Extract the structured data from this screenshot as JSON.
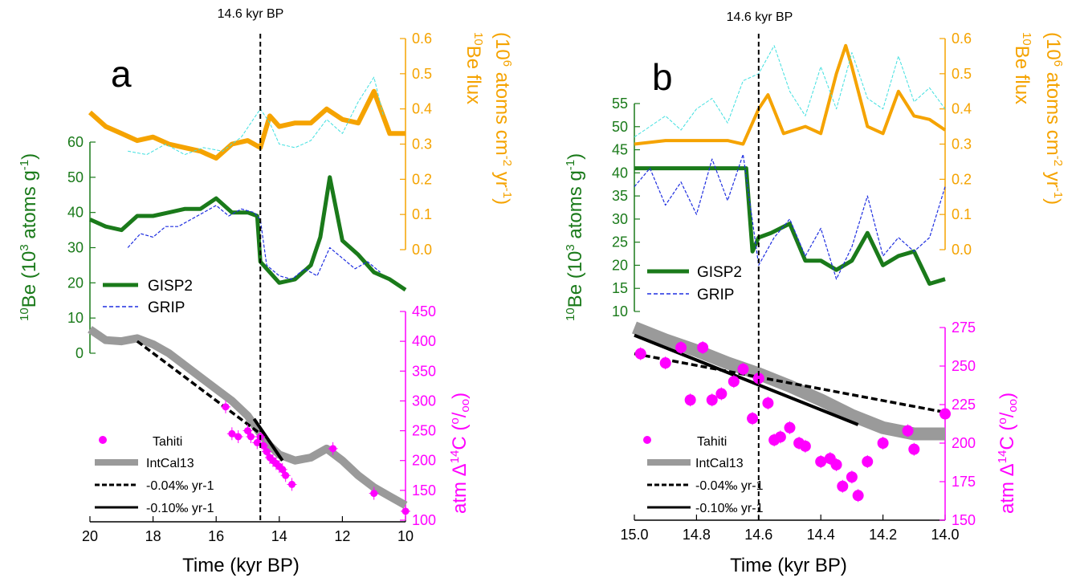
{
  "chart_data": [
    {
      "panel": "a",
      "type": "line",
      "event_label": "14.6 kyr BP",
      "event_x": 14.6,
      "xlabel": "Time (kyr BP)",
      "xlim": [
        20,
        10
      ],
      "xticks": [
        20,
        18,
        16,
        14,
        12,
        10
      ],
      "be_axis": {
        "label": "10Be (10^3 atoms g^-1)",
        "ylim": [
          0,
          60
        ],
        "ticks": [
          0,
          10,
          20,
          30,
          40,
          50,
          60
        ],
        "color": "#1a7a1a"
      },
      "flux_axis": {
        "label": "10Be flux (10^6 atoms cm^-2 yr^-1)",
        "ylim": [
          0,
          0.6
        ],
        "ticks": [
          "0.0",
          "0.1",
          "0.2",
          "0.3",
          "0.4",
          "0.5",
          "0.6"
        ],
        "color": "#f5a300"
      },
      "c14_axis": {
        "label": "atm Δ14C (‰)",
        "ylim": [
          100,
          450
        ],
        "ticks": [
          100,
          150,
          200,
          250,
          300,
          350,
          400,
          450
        ],
        "color": "#ff00ff"
      },
      "series": [
        {
          "name": "GISP2",
          "axis": "be",
          "color": "#1a7a1a",
          "x": [
            20.0,
            19.5,
            19.0,
            18.5,
            18.0,
            17.5,
            17.0,
            16.5,
            16.0,
            15.5,
            15.0,
            14.7,
            14.6,
            14.3,
            14.0,
            13.5,
            13.0,
            12.7,
            12.4,
            12.0,
            11.5,
            11.0,
            10.5,
            10.0
          ],
          "values": [
            38,
            36,
            35,
            39,
            39,
            40,
            41,
            41,
            44,
            40,
            40,
            39,
            26,
            23,
            20,
            21,
            25,
            33,
            50,
            32,
            28,
            23,
            21,
            18
          ]
        },
        {
          "name": "GRIP",
          "axis": "be",
          "color": "#1e2ee0",
          "x": [
            18.8,
            18.4,
            18.0,
            17.6,
            17.2,
            16.8,
            16.4,
            16.0,
            15.6,
            15.2,
            14.8,
            14.6,
            14.4,
            14.0,
            13.6,
            13.2,
            12.8,
            12.4,
            12.0,
            11.6,
            11.2,
            10.8
          ],
          "values": [
            30,
            34,
            33,
            36,
            36,
            38,
            40,
            42,
            39,
            41,
            40,
            38,
            25,
            22,
            21,
            24,
            22,
            30,
            27,
            24,
            26,
            23
          ]
        },
        {
          "name": "10Be flux (GISP2)",
          "axis": "flux",
          "color": "#f5a300",
          "x": [
            20.0,
            19.5,
            19.0,
            18.5,
            18.0,
            17.5,
            17.0,
            16.5,
            16.0,
            15.5,
            15.0,
            14.6,
            14.3,
            14.0,
            13.5,
            13.0,
            12.5,
            12.0,
            11.5,
            11.0,
            10.5,
            10.0
          ],
          "values": [
            0.39,
            0.35,
            0.33,
            0.31,
            0.32,
            0.3,
            0.29,
            0.28,
            0.26,
            0.3,
            0.31,
            0.29,
            0.38,
            0.35,
            0.36,
            0.36,
            0.4,
            0.37,
            0.36,
            0.45,
            0.33,
            0.33
          ]
        },
        {
          "name": "10Be flux (GRIP)",
          "axis": "flux",
          "color": "#40e0e0",
          "x": [
            18.8,
            18.2,
            17.6,
            17.0,
            16.4,
            15.8,
            15.2,
            14.6,
            14.3,
            14.0,
            13.5,
            13.0,
            12.5,
            12.0,
            11.5,
            11.0,
            10.7
          ],
          "values": [
            0.28,
            0.27,
            0.3,
            0.27,
            0.29,
            0.28,
            0.32,
            0.4,
            0.36,
            0.3,
            0.29,
            0.31,
            0.37,
            0.33,
            0.42,
            0.49,
            0.38
          ]
        },
        {
          "name": "IntCal13",
          "axis": "c14",
          "color": "#9a9a9a",
          "x": [
            20.0,
            19.5,
            19.0,
            18.5,
            18.0,
            17.5,
            17.0,
            16.5,
            16.0,
            15.5,
            15.0,
            14.6,
            14.3,
            14.0,
            13.5,
            13.0,
            12.5,
            12.0,
            11.5,
            11.0,
            10.5,
            10.0
          ],
          "values": [
            420,
            402,
            400,
            405,
            395,
            380,
            360,
            340,
            320,
            300,
            275,
            245,
            225,
            210,
            200,
            205,
            220,
            200,
            175,
            155,
            140,
            125
          ]
        },
        {
          "name": "-0.04‰ yr-1",
          "axis": "c14",
          "color": "#000000",
          "dashed": true,
          "x": [
            18.5,
            14.6
          ],
          "values": [
            400,
            245
          ]
        },
        {
          "name": "-0.10‰ yr-1",
          "axis": "c14",
          "color": "#000000",
          "x": [
            14.8,
            13.9
          ],
          "values": [
            270,
            200
          ]
        },
        {
          "name": "Tahiti",
          "axis": "c14",
          "color": "#ff00ff",
          "scatter": true,
          "x": [
            15.7,
            15.5,
            15.3,
            15.0,
            14.9,
            14.7,
            14.6,
            14.5,
            14.4,
            14.3,
            14.2,
            14.1,
            14.0,
            13.9,
            13.8,
            13.6,
            12.3,
            11.0,
            10.0
          ],
          "values": [
            290,
            245,
            240,
            250,
            240,
            230,
            240,
            225,
            215,
            205,
            200,
            195,
            190,
            185,
            175,
            160,
            220,
            145,
            115
          ]
        }
      ]
    },
    {
      "panel": "b",
      "type": "line",
      "event_label": "14.6 kyr BP",
      "event_x": 14.6,
      "xlabel": "Time (kyr BP)",
      "xlim": [
        15.0,
        14.0
      ],
      "xticks": [
        "15.0",
        "14.8",
        "14.6",
        "14.4",
        "14.2",
        "14.0"
      ],
      "be_axis": {
        "label": "10Be (10^3 atoms g^-1)",
        "ylim": [
          10,
          55
        ],
        "ticks": [
          10,
          15,
          20,
          25,
          30,
          35,
          40,
          45,
          50,
          55
        ],
        "color": "#1a7a1a"
      },
      "flux_axis": {
        "label": "10Be flux (10^6 atoms cm^-2 yr^-1)",
        "ylim": [
          0,
          0.6
        ],
        "ticks": [
          "0.0",
          "0.1",
          "0.2",
          "0.3",
          "0.4",
          "0.5",
          "0.6"
        ],
        "color": "#f5a300"
      },
      "c14_axis": {
        "label": "atm Δ14C (‰)",
        "ylim": [
          150,
          275
        ],
        "ticks": [
          150,
          175,
          200,
          225,
          250,
          275
        ],
        "color": "#ff00ff"
      },
      "series": [
        {
          "name": "GISP2",
          "axis": "be",
          "color": "#1a7a1a",
          "x": [
            15.0,
            14.85,
            14.7,
            14.64,
            14.62,
            14.6,
            14.56,
            14.5,
            14.45,
            14.4,
            14.35,
            14.3,
            14.25,
            14.2,
            14.15,
            14.1,
            14.05,
            14.0
          ],
          "values": [
            41,
            41,
            41,
            41,
            23,
            26,
            27,
            29,
            21,
            21,
            19,
            21,
            27,
            20,
            22,
            23,
            16,
            17
          ]
        },
        {
          "name": "GRIP",
          "axis": "be",
          "color": "#1e2ee0",
          "x": [
            15.0,
            14.95,
            14.9,
            14.85,
            14.8,
            14.75,
            14.7,
            14.65,
            14.6,
            14.55,
            14.5,
            14.45,
            14.4,
            14.35,
            14.3,
            14.25,
            14.2,
            14.15,
            14.1,
            14.05,
            14.0
          ],
          "values": [
            37,
            41,
            33,
            38,
            31,
            43,
            34,
            44,
            20,
            26,
            30,
            22,
            28,
            17,
            24,
            35,
            22,
            26,
            23,
            26,
            37
          ]
        },
        {
          "name": "10Be flux (GISP2)",
          "axis": "flux",
          "color": "#f5a300",
          "x": [
            15.0,
            14.9,
            14.8,
            14.7,
            14.65,
            14.6,
            14.57,
            14.52,
            14.45,
            14.4,
            14.35,
            14.32,
            14.3,
            14.25,
            14.2,
            14.15,
            14.1,
            14.05,
            14.0
          ],
          "values": [
            0.3,
            0.31,
            0.31,
            0.31,
            0.3,
            0.4,
            0.44,
            0.33,
            0.35,
            0.33,
            0.5,
            0.58,
            0.52,
            0.35,
            0.33,
            0.45,
            0.38,
            0.37,
            0.34
          ]
        },
        {
          "name": "10Be flux (GRIP)",
          "axis": "flux",
          "color": "#40e0e0",
          "x": [
            15.0,
            14.95,
            14.9,
            14.85,
            14.8,
            14.75,
            14.7,
            14.65,
            14.6,
            14.55,
            14.5,
            14.45,
            14.4,
            14.35,
            14.3,
            14.25,
            14.2,
            14.15,
            14.1,
            14.05,
            14.0
          ],
          "values": [
            0.32,
            0.35,
            0.38,
            0.34,
            0.4,
            0.43,
            0.36,
            0.48,
            0.5,
            0.58,
            0.45,
            0.38,
            0.52,
            0.4,
            0.56,
            0.43,
            0.4,
            0.55,
            0.42,
            0.46,
            0.4
          ]
        },
        {
          "name": "IntCal13",
          "axis": "c14",
          "color": "#9a9a9a",
          "x": [
            15.0,
            14.9,
            14.8,
            14.7,
            14.6,
            14.5,
            14.4,
            14.3,
            14.2,
            14.1,
            14.0
          ],
          "values": [
            275,
            267,
            260,
            252,
            245,
            237,
            228,
            218,
            210,
            206,
            206
          ]
        },
        {
          "name": "-0.04‰ yr-1",
          "axis": "c14",
          "color": "#000000",
          "dashed": true,
          "x": [
            15.0,
            14.0
          ],
          "values": [
            258,
            220
          ]
        },
        {
          "name": "-0.10‰ yr-1",
          "axis": "c14",
          "color": "#000000",
          "x": [
            15.0,
            14.28
          ],
          "values": [
            270,
            212
          ]
        },
        {
          "name": "Tahiti",
          "axis": "c14",
          "color": "#ff00ff",
          "scatter": true,
          "x": [
            14.98,
            14.9,
            14.85,
            14.82,
            14.78,
            14.75,
            14.72,
            14.68,
            14.65,
            14.62,
            14.6,
            14.57,
            14.55,
            14.53,
            14.5,
            14.47,
            14.45,
            14.4,
            14.37,
            14.35,
            14.33,
            14.3,
            14.28,
            14.25,
            14.2,
            14.12,
            14.1,
            14.0
          ],
          "values": [
            258,
            252,
            262,
            228,
            262,
            228,
            232,
            240,
            248,
            216,
            242,
            226,
            202,
            204,
            210,
            200,
            198,
            188,
            190,
            186,
            172,
            178,
            166,
            188,
            200,
            208,
            196,
            219
          ]
        }
      ]
    }
  ],
  "panels": [
    {
      "letter": "a",
      "event_label": "14.6 kyr BP",
      "xlabel": "Time (kyr BP)",
      "legend": {
        "top": [
          "GISP2",
          "GRIP"
        ],
        "bottom": [
          "Tahiti",
          "IntCal13",
          "-0.04‰ yr-1",
          "-0.10‰ yr-1"
        ]
      }
    },
    {
      "letter": "b",
      "event_label": "14.6 kyr BP",
      "xlabel": "Time (kyr BP)",
      "legend": {
        "top": [
          "GISP2",
          "GRIP"
        ],
        "bottom": [
          "Tahiti",
          "IntCal13",
          "-0.04‰ yr-1",
          "-0.10‰ yr-1"
        ]
      }
    }
  ]
}
